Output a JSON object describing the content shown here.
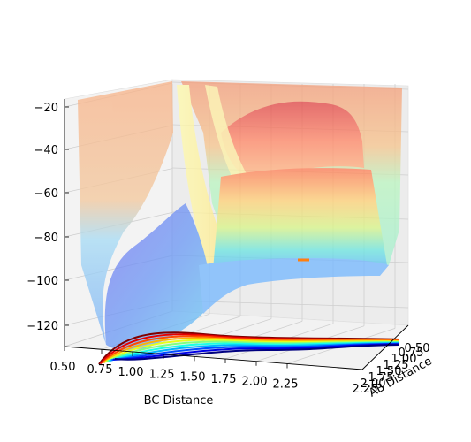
{
  "chart_data": {
    "type": "surface",
    "title": "",
    "xlabel": "BC Distance",
    "ylabel": "AB Distance",
    "zlabel": "",
    "colormap": "jet",
    "grid": true,
    "x_ticks": [
      "0.50",
      "0.75",
      "1.00",
      "1.25",
      "1.50",
      "1.75",
      "2.00",
      "2.25"
    ],
    "y_ticks": [
      "0.50",
      "0.75",
      "1.00",
      "1.25",
      "1.50",
      "1.75",
      "2.00",
      "2.25"
    ],
    "z_ticks": [
      "−120",
      "−100",
      "−80",
      "−60",
      "−40",
      "−20"
    ],
    "xlim": [
      0.5,
      2.4
    ],
    "ylim": [
      0.5,
      2.4
    ],
    "zlim": [
      -130,
      -15
    ],
    "surface_samples": [
      {
        "bc": 0.75,
        "ab": 2.25,
        "energy": -118
      },
      {
        "bc": 1.0,
        "ab": 2.25,
        "energy": -112
      },
      {
        "bc": 1.5,
        "ab": 1.5,
        "energy": -30
      },
      {
        "bc": 2.25,
        "ab": 0.75,
        "energy": -110
      },
      {
        "bc": 2.25,
        "ab": 2.25,
        "energy": -20
      }
    ],
    "contour_levels": [
      -120,
      -110,
      -100,
      -90,
      -80,
      -70,
      -60,
      -50,
      -40,
      -30,
      -20
    ],
    "trajectory_marker": {
      "color": "#ff7f0e"
    }
  }
}
